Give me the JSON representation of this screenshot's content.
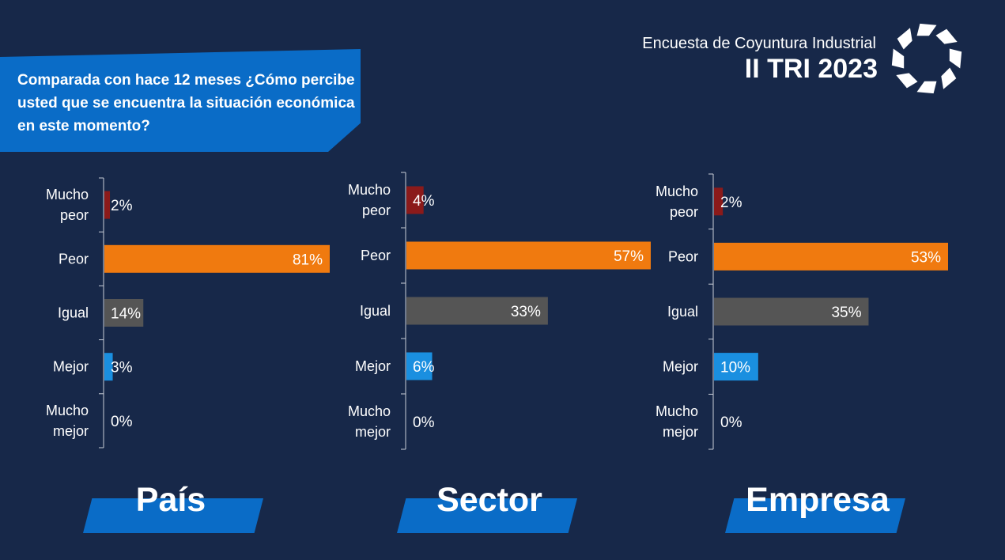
{
  "question": "Comparada con hace 12 meses ¿Cómo percibe usted que se encuentra la situación económica en este momento?",
  "brand": {
    "subtitle": "Encuesta de Coyuntura Industrial",
    "title": "II TRI 2023",
    "logo_icon": "arrow-ring-logo-icon"
  },
  "colors": {
    "background": "#172849",
    "accent_blue": "#0a6cc7",
    "mucho_peor": "#8b1a1a",
    "peor": "#f07a0f",
    "igual": "#555555",
    "mejor": "#1a8fe0",
    "mucho_mejor": "#1a8fe0"
  },
  "chart_data": [
    {
      "type": "bar",
      "orientation": "horizontal",
      "title": "País",
      "categories": [
        [
          "Mucho",
          "peor"
        ],
        [
          "Peor"
        ],
        [
          "Igual"
        ],
        [
          "Mejor"
        ],
        [
          "Mucho",
          "mejor"
        ]
      ],
      "values": [
        2,
        81,
        14,
        3,
        0
      ],
      "value_labels": [
        "2%",
        "81%",
        "14%",
        "3%",
        "0%"
      ],
      "xlim": [
        0,
        81
      ]
    },
    {
      "type": "bar",
      "orientation": "horizontal",
      "title": "Sector",
      "categories": [
        [
          "Mucho",
          "peor"
        ],
        [
          "Peor"
        ],
        [
          "Igual"
        ],
        [
          "Mejor"
        ],
        [
          "Mucho",
          "mejor"
        ]
      ],
      "values": [
        4,
        57,
        33,
        6,
        0
      ],
      "value_labels": [
        "4%",
        "57%",
        "33%",
        "6%",
        "0%"
      ],
      "xlim": [
        0,
        57
      ]
    },
    {
      "type": "bar",
      "orientation": "horizontal",
      "title": "Empresa",
      "categories": [
        [
          "Mucho",
          "peor"
        ],
        [
          "Peor"
        ],
        [
          "Igual"
        ],
        [
          "Mejor"
        ],
        [
          "Mucho",
          "mejor"
        ]
      ],
      "values": [
        2,
        53,
        35,
        10,
        0
      ],
      "value_labels": [
        "2%",
        "53%",
        "35%",
        "10%",
        "0%"
      ],
      "xlim": [
        0,
        53
      ]
    }
  ]
}
